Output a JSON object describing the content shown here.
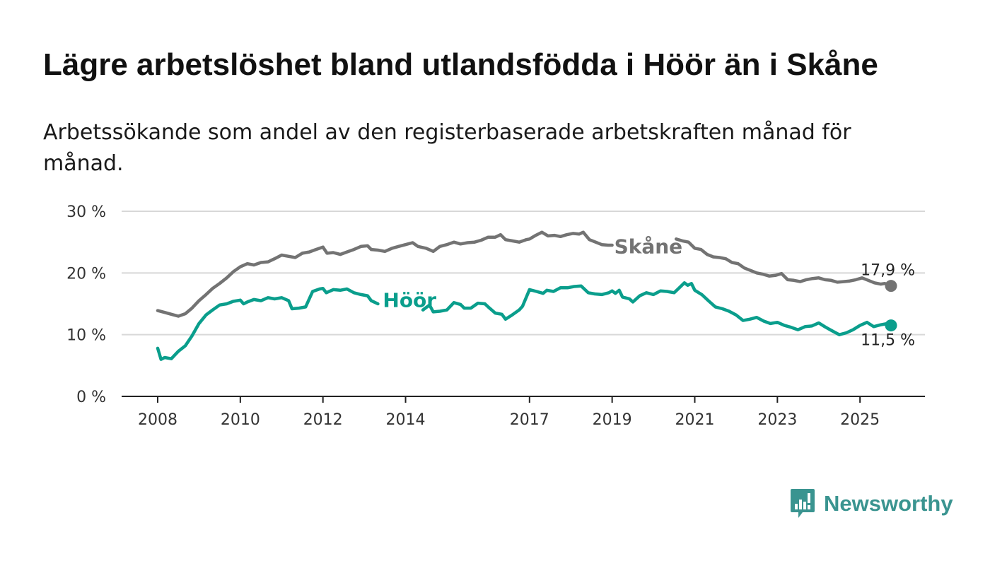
{
  "header": {
    "title": "Lägre arbetslöshet bland utlandsfödda i Höör än i Skåne",
    "subtitle": "Arbetssökande som andel av den registerbaserade arbetskraften månad för månad."
  },
  "brand": {
    "name": "Newsworthy",
    "icon": "newsworthy-logo-icon",
    "color": "#3a9490"
  },
  "chart_data": {
    "type": "line",
    "title": "Lägre arbetslöshet bland utlandsfödda i Höör än i Skåne",
    "subtitle": "Arbetssökande som andel av den registerbaserade arbetskraften månad för månad.",
    "xlabel": "",
    "ylabel": "",
    "xlim": [
      2008.0,
      2025.75
    ],
    "ylim": [
      0,
      30
    ],
    "yticks": [
      {
        "value": 0,
        "label": "0 %"
      },
      {
        "value": 10,
        "label": "10 %"
      },
      {
        "value": 20,
        "label": "20 %"
      },
      {
        "value": 30,
        "label": "30 %"
      }
    ],
    "xticks": [
      {
        "value": 2008,
        "label": "2008"
      },
      {
        "value": 2010,
        "label": "2010"
      },
      {
        "value": 2012,
        "label": "2012"
      },
      {
        "value": 2014,
        "label": "2014"
      },
      {
        "value": 2017,
        "label": "2017"
      },
      {
        "value": 2019,
        "label": "2019"
      },
      {
        "value": 2021,
        "label": "2021"
      },
      {
        "value": 2023,
        "label": "2023"
      },
      {
        "value": 2025,
        "label": "2025"
      }
    ],
    "grid": true,
    "legend": "inline labels",
    "series": [
      {
        "name": "Skåne",
        "color": "#737373",
        "end_label": "17,9 %",
        "points": [
          [
            2008.0,
            13.9
          ],
          [
            2008.17,
            13.6
          ],
          [
            2008.33,
            13.3
          ],
          [
            2008.5,
            13.0
          ],
          [
            2008.67,
            13.4
          ],
          [
            2008.83,
            14.3
          ],
          [
            2009.0,
            15.5
          ],
          [
            2009.17,
            16.5
          ],
          [
            2009.33,
            17.5
          ],
          [
            2009.5,
            18.3
          ],
          [
            2009.67,
            19.2
          ],
          [
            2009.83,
            20.2
          ],
          [
            2010.0,
            21.0
          ],
          [
            2010.17,
            21.5
          ],
          [
            2010.33,
            21.3
          ],
          [
            2010.5,
            21.7
          ],
          [
            2010.67,
            21.8
          ],
          [
            2010.83,
            22.3
          ],
          [
            2011.0,
            22.9
          ],
          [
            2011.17,
            22.7
          ],
          [
            2011.33,
            22.5
          ],
          [
            2011.5,
            23.2
          ],
          [
            2011.67,
            23.4
          ],
          [
            2011.83,
            23.8
          ],
          [
            2012.0,
            24.2
          ],
          [
            2012.1,
            23.2
          ],
          [
            2012.25,
            23.3
          ],
          [
            2012.42,
            23.0
          ],
          [
            2012.58,
            23.4
          ],
          [
            2012.75,
            23.8
          ],
          [
            2012.92,
            24.3
          ],
          [
            2013.08,
            24.4
          ],
          [
            2013.17,
            23.8
          ],
          [
            2013.33,
            23.7
          ],
          [
            2013.5,
            23.5
          ],
          [
            2013.67,
            24.0
          ],
          [
            2013.83,
            24.3
          ],
          [
            2014.0,
            24.6
          ],
          [
            2014.17,
            24.9
          ],
          [
            2014.3,
            24.3
          ],
          [
            2014.5,
            24.0
          ],
          [
            2014.67,
            23.5
          ],
          [
            2014.83,
            24.3
          ],
          [
            2015.0,
            24.6
          ],
          [
            2015.17,
            25.0
          ],
          [
            2015.33,
            24.7
          ],
          [
            2015.5,
            24.9
          ],
          [
            2015.67,
            25.0
          ],
          [
            2015.83,
            25.3
          ],
          [
            2016.0,
            25.8
          ],
          [
            2016.17,
            25.8
          ],
          [
            2016.3,
            26.2
          ],
          [
            2016.42,
            25.4
          ],
          [
            2016.58,
            25.2
          ],
          [
            2016.75,
            25.0
          ],
          [
            2016.92,
            25.4
          ],
          [
            2017.0,
            25.5
          ],
          [
            2017.15,
            26.1
          ],
          [
            2017.3,
            26.6
          ],
          [
            2017.45,
            26.0
          ],
          [
            2017.6,
            26.1
          ],
          [
            2017.75,
            25.9
          ],
          [
            2017.9,
            26.2
          ],
          [
            2018.05,
            26.4
          ],
          [
            2018.2,
            26.3
          ],
          [
            2018.3,
            26.6
          ],
          [
            2018.45,
            25.4
          ],
          [
            2018.6,
            25.0
          ],
          [
            2018.75,
            24.6
          ],
          [
            2018.9,
            24.5
          ],
          [
            2019.0,
            24.5
          ]
        ],
        "points2": [
          [
            2020.55,
            25.5
          ],
          [
            2020.7,
            25.2
          ],
          [
            2020.85,
            25.0
          ],
          [
            2021.0,
            24.0
          ],
          [
            2021.15,
            23.8
          ],
          [
            2021.3,
            23.0
          ],
          [
            2021.45,
            22.6
          ],
          [
            2021.6,
            22.5
          ],
          [
            2021.75,
            22.3
          ],
          [
            2021.9,
            21.7
          ],
          [
            2022.05,
            21.5
          ],
          [
            2022.2,
            20.8
          ],
          [
            2022.35,
            20.4
          ],
          [
            2022.5,
            20.0
          ],
          [
            2022.65,
            19.8
          ],
          [
            2022.8,
            19.5
          ],
          [
            2022.95,
            19.6
          ],
          [
            2023.1,
            19.9
          ],
          [
            2023.25,
            18.9
          ],
          [
            2023.4,
            18.8
          ],
          [
            2023.55,
            18.6
          ],
          [
            2023.7,
            18.9
          ],
          [
            2023.85,
            19.1
          ],
          [
            2024.0,
            19.2
          ],
          [
            2024.15,
            18.9
          ],
          [
            2024.3,
            18.8
          ],
          [
            2024.45,
            18.5
          ],
          [
            2024.6,
            18.6
          ],
          [
            2024.75,
            18.7
          ],
          [
            2024.9,
            18.9
          ],
          [
            2025.05,
            19.2
          ],
          [
            2025.2,
            18.8
          ],
          [
            2025.35,
            18.4
          ],
          [
            2025.5,
            18.2
          ],
          [
            2025.6,
            18.3
          ],
          [
            2025.75,
            17.9
          ]
        ]
      },
      {
        "name": "Höör",
        "color": "#0a9e8c",
        "end_label": "11,5 %",
        "points": [
          [
            2008.0,
            7.8
          ],
          [
            2008.08,
            6.0
          ],
          [
            2008.17,
            6.3
          ],
          [
            2008.33,
            6.1
          ],
          [
            2008.5,
            7.3
          ],
          [
            2008.67,
            8.2
          ],
          [
            2008.83,
            9.8
          ],
          [
            2009.0,
            11.8
          ],
          [
            2009.17,
            13.2
          ],
          [
            2009.33,
            14.0
          ],
          [
            2009.5,
            14.8
          ],
          [
            2009.67,
            15.0
          ],
          [
            2009.83,
            15.4
          ],
          [
            2010.0,
            15.6
          ],
          [
            2010.08,
            15.0
          ],
          [
            2010.17,
            15.3
          ],
          [
            2010.33,
            15.7
          ],
          [
            2010.5,
            15.5
          ],
          [
            2010.67,
            16.0
          ],
          [
            2010.83,
            15.8
          ],
          [
            2011.0,
            16.0
          ],
          [
            2011.17,
            15.5
          ],
          [
            2011.25,
            14.2
          ],
          [
            2011.42,
            14.3
          ],
          [
            2011.58,
            14.5
          ],
          [
            2011.75,
            17.0
          ],
          [
            2011.92,
            17.4
          ],
          [
            2012.0,
            17.5
          ],
          [
            2012.08,
            16.8
          ],
          [
            2012.25,
            17.3
          ],
          [
            2012.42,
            17.2
          ],
          [
            2012.58,
            17.4
          ],
          [
            2012.75,
            16.8
          ],
          [
            2012.92,
            16.5
          ],
          [
            2013.08,
            16.3
          ],
          [
            2013.17,
            15.5
          ],
          [
            2013.33,
            15.0
          ]
        ],
        "points2": [
          [
            2014.42,
            14.0
          ],
          [
            2014.58,
            14.8
          ],
          [
            2014.67,
            13.7
          ],
          [
            2014.83,
            13.8
          ],
          [
            2015.0,
            14.0
          ],
          [
            2015.17,
            15.2
          ],
          [
            2015.33,
            14.9
          ],
          [
            2015.42,
            14.3
          ],
          [
            2015.58,
            14.3
          ],
          [
            2015.75,
            15.1
          ],
          [
            2015.92,
            15.0
          ],
          [
            2016.0,
            14.5
          ],
          [
            2016.17,
            13.5
          ],
          [
            2016.33,
            13.3
          ],
          [
            2016.42,
            12.5
          ],
          [
            2016.58,
            13.2
          ],
          [
            2016.75,
            14.0
          ],
          [
            2016.83,
            14.6
          ],
          [
            2017.0,
            17.3
          ],
          [
            2017.17,
            17.0
          ],
          [
            2017.33,
            16.7
          ],
          [
            2017.42,
            17.2
          ],
          [
            2017.58,
            17.0
          ],
          [
            2017.75,
            17.6
          ],
          [
            2017.92,
            17.6
          ],
          [
            2018.08,
            17.8
          ],
          [
            2018.25,
            17.9
          ],
          [
            2018.42,
            16.8
          ],
          [
            2018.58,
            16.6
          ],
          [
            2018.75,
            16.5
          ],
          [
            2018.92,
            16.8
          ],
          [
            2019.0,
            17.1
          ],
          [
            2019.08,
            16.7
          ],
          [
            2019.17,
            17.2
          ],
          [
            2019.25,
            16.1
          ],
          [
            2019.42,
            15.8
          ],
          [
            2019.5,
            15.3
          ],
          [
            2019.67,
            16.3
          ],
          [
            2019.83,
            16.8
          ],
          [
            2020.0,
            16.5
          ],
          [
            2020.17,
            17.1
          ],
          [
            2020.33,
            17.0
          ],
          [
            2020.5,
            16.8
          ],
          [
            2020.58,
            17.3
          ],
          [
            2020.75,
            18.4
          ],
          [
            2020.83,
            18.0
          ],
          [
            2020.92,
            18.3
          ],
          [
            2021.0,
            17.2
          ],
          [
            2021.17,
            16.5
          ],
          [
            2021.33,
            15.5
          ],
          [
            2021.5,
            14.5
          ],
          [
            2021.67,
            14.2
          ],
          [
            2021.83,
            13.8
          ],
          [
            2022.0,
            13.2
          ],
          [
            2022.17,
            12.3
          ],
          [
            2022.33,
            12.5
          ],
          [
            2022.5,
            12.8
          ],
          [
            2022.67,
            12.2
          ],
          [
            2022.83,
            11.8
          ],
          [
            2023.0,
            12.0
          ],
          [
            2023.17,
            11.5
          ],
          [
            2023.33,
            11.2
          ],
          [
            2023.5,
            10.8
          ],
          [
            2023.67,
            11.3
          ],
          [
            2023.83,
            11.4
          ],
          [
            2024.0,
            11.9
          ],
          [
            2024.17,
            11.2
          ],
          [
            2024.33,
            10.6
          ],
          [
            2024.5,
            10.0
          ],
          [
            2024.67,
            10.3
          ],
          [
            2024.83,
            10.8
          ],
          [
            2025.0,
            11.5
          ],
          [
            2025.17,
            12.0
          ],
          [
            2025.33,
            11.3
          ],
          [
            2025.5,
            11.6
          ],
          [
            2025.67,
            11.8
          ],
          [
            2025.75,
            11.5
          ]
        ]
      }
    ]
  }
}
